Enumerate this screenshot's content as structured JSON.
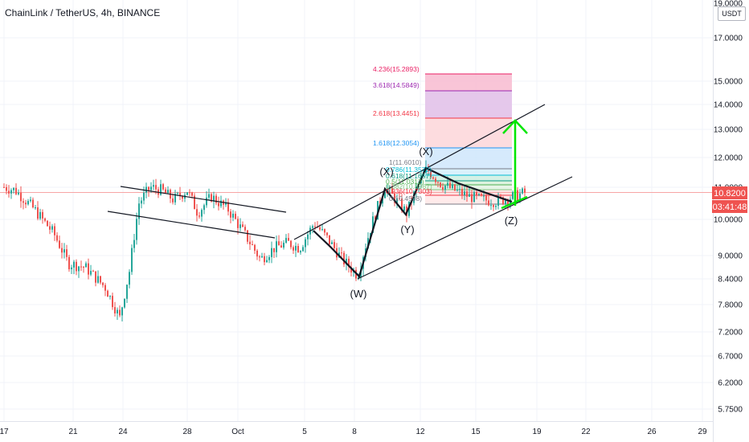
{
  "header": {
    "title": "ChainLink / TetherUS, 4h, BINANCE"
  },
  "price_axis": {
    "currency": "USDT",
    "ticks": [
      "19.0000",
      "17.0000",
      "15.0000",
      "14.0000",
      "13.0000",
      "12.0000",
      "11.0000",
      "10.0000",
      "9.0000",
      "8.4000",
      "7.8000",
      "7.2000",
      "6.7000",
      "6.2000",
      "5.7500"
    ],
    "current_price": "10.8200",
    "countdown": "03:41:48",
    "price_color": "#ef5350"
  },
  "time_axis": {
    "ticks": [
      "17",
      "21",
      "24",
      "28",
      "Oct",
      "5",
      "8",
      "12",
      "15",
      "19",
      "22",
      "26",
      "29"
    ]
  },
  "fib_levels": [
    {
      "label": "4.236(15.2893)",
      "color": "#e91e63"
    },
    {
      "label": "3.618(14.5849)",
      "color": "#9c27b0"
    },
    {
      "label": "2.618(13.4451)",
      "color": "#f23645"
    },
    {
      "label": "1.618(12.3054)",
      "color": "#2196f3"
    },
    {
      "label": "1(11.6010)",
      "color": "#787b86"
    },
    {
      "label": "0.786(11.3572)",
      "color": "#00bcd4"
    },
    {
      "label": "0.618(11.1657)",
      "color": "#089981"
    },
    {
      "label": "0.5(11.0312)",
      "color": "#4caf50"
    },
    {
      "label": "0.382(10.8967)",
      "color": "#81c784"
    },
    {
      "label": "0.236(10.7303)",
      "color": "#f23645"
    },
    {
      "label": "0(10.4598)",
      "color": "#787b86"
    }
  ],
  "wave_labels": [
    "(W)",
    "(X)",
    "(Y)",
    "(X)",
    "(Z)"
  ],
  "colors": {
    "up": "#26a69a",
    "down": "#ef5350",
    "target_arrow": "#00e600"
  },
  "chart_data": {
    "type": "candlestick",
    "title": "ChainLink / TetherUS, 4h, BINANCE",
    "x_ticks": [
      "17",
      "21",
      "24",
      "28",
      "Oct",
      "5",
      "8",
      "12",
      "15",
      "19",
      "22",
      "26",
      "29"
    ],
    "y_ticks": [
      19.0,
      17.0,
      15.0,
      14.0,
      13.0,
      12.0,
      11.0,
      10.0,
      9.0,
      8.4,
      7.8,
      7.2,
      6.7,
      6.2,
      5.75
    ],
    "y_scale": "log",
    "ylim": [
      5.6,
      20.0
    ],
    "close_path": [
      [
        "17",
        11.0
      ],
      [
        "18",
        10.9
      ],
      [
        "19",
        10.6
      ],
      [
        "20",
        10.3
      ],
      [
        "20",
        10.0
      ],
      [
        "21",
        9.6
      ],
      [
        "22",
        8.8
      ],
      [
        "23",
        8.7
      ],
      [
        "23",
        8.2
      ],
      [
        "23",
        7.5
      ],
      [
        "24",
        8.6
      ],
      [
        "24",
        10.5
      ],
      [
        "25",
        11.0
      ],
      [
        "26",
        10.9
      ],
      [
        "27",
        10.6
      ],
      [
        "28",
        10.9
      ],
      [
        "28",
        10.2
      ],
      [
        "29",
        10.7
      ],
      [
        "30",
        10.3
      ],
      [
        "Oct",
        9.6
      ],
      [
        "Oct",
        8.9
      ],
      [
        "2",
        9.2
      ],
      [
        "3",
        9.35
      ],
      [
        "4",
        9.2
      ],
      [
        "5",
        9.9
      ],
      [
        "6",
        9.5
      ],
      [
        "7",
        8.9
      ],
      [
        "8",
        8.5
      ],
      [
        "9",
        9.9
      ],
      [
        "10",
        11.0
      ],
      [
        "11",
        10.2
      ],
      [
        "12",
        11.0
      ],
      [
        "12",
        11.6
      ],
      [
        "13",
        11.1
      ],
      [
        "14",
        10.9
      ],
      [
        "15",
        10.7
      ],
      [
        "16",
        10.6
      ],
      [
        "17",
        10.55
      ],
      [
        "18",
        10.82
      ]
    ],
    "last_price": 10.82,
    "annotations": [
      "(W)",
      "(X)",
      "(Y)",
      "(X)",
      "(Z)"
    ]
  }
}
